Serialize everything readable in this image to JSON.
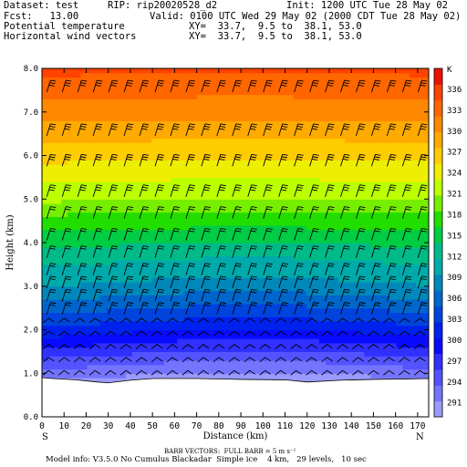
{
  "header": {
    "dataset": "Dataset: test",
    "rip": "RIP: rip20020528_d2",
    "init": "Init: 1200 UTC Tue 28 May 02",
    "fcst": "Fcst:   13.00",
    "valid": "Valid: 0100 UTC Wed 29 May 02 (2000 CDT Tue 28 May 02)",
    "field1_name": "Potential temperature",
    "field1_xy": "XY=  33.7,  9.5 to  38.1, 53.0",
    "field2_name": "Horizontal wind vectors",
    "field2_xy": "XY=  33.7,  9.5 to  38.1, 53.0"
  },
  "footer": {
    "barb_note": "BARB VECTORS:  FULL BARB = 5 m s⁻¹",
    "model_info": "Model info: V3.5.0 No Cumulus Blackadar  Simple ice    4 km,   29 levels,   10 sec"
  },
  "colors": {
    "palette": [
      "#9b9bff",
      "#7474ff",
      "#5353ff",
      "#3030ff",
      "#0a0aff",
      "#0022ee",
      "#0044dd",
      "#0066cc",
      "#0088bb",
      "#00aaaa",
      "#00bb88",
      "#00cc44",
      "#22dd00",
      "#77ee00",
      "#bbff00",
      "#eeee00",
      "#ffcc00",
      "#ffaa00",
      "#ff8800",
      "#ff6600",
      "#ff4400",
      "#ee1100"
    ],
    "underground": "#ffffff",
    "barb": "#000000"
  },
  "chart_data": {
    "type": "heatmap",
    "title": "Potential temperature",
    "xlabel": "Distance (km)",
    "ylabel": "Height (km)",
    "xlim": [
      0,
      175
    ],
    "ylim": [
      0,
      8
    ],
    "x_ticks": [
      0,
      10,
      20,
      30,
      40,
      50,
      60,
      70,
      80,
      90,
      100,
      110,
      120,
      130,
      140,
      150,
      160,
      170
    ],
    "y_ticks": [
      "0.0",
      "1.0",
      "2.0",
      "3.0",
      "4.0",
      "5.0",
      "6.0",
      "7.0",
      "8.0"
    ],
    "end_labels": {
      "left": "S",
      "right": "N"
    },
    "colorbar": {
      "unit": "K",
      "levels": [
        291,
        294,
        297,
        300,
        303,
        306,
        309,
        312,
        315,
        318,
        321,
        324,
        327,
        330,
        333,
        336
      ],
      "range": [
        289,
        339
      ]
    },
    "terrain_km": [
      [
        0,
        0.9
      ],
      [
        5,
        0.88
      ],
      [
        15,
        0.85
      ],
      [
        25,
        0.8
      ],
      [
        30,
        0.78
      ],
      [
        40,
        0.84
      ],
      [
        50,
        0.88
      ],
      [
        70,
        0.88
      ],
      [
        90,
        0.86
      ],
      [
        110,
        0.85
      ],
      [
        120,
        0.8
      ],
      [
        135,
        0.84
      ],
      [
        150,
        0.86
      ],
      [
        165,
        0.87
      ],
      [
        175,
        0.88
      ]
    ],
    "contour_heights_km": [
      {
        "level": 303,
        "height": 2.2
      },
      {
        "level": 306,
        "height": 2.6
      },
      {
        "level": 309,
        "height": 3.0
      },
      {
        "level": 312,
        "height": 3.6
      },
      {
        "level": 315,
        "height": 4.1
      },
      {
        "level": 318,
        "height": 4.6
      },
      {
        "level": 321,
        "height": 5.0
      },
      {
        "level": 324,
        "height": 5.6
      },
      {
        "level": 327,
        "height": 6.2
      },
      {
        "level": 330,
        "height": 6.8
      },
      {
        "level": 333,
        "height": 7.5
      }
    ],
    "barb_rows_km": [
      1.0,
      1.3,
      1.6,
      1.9,
      2.2,
      2.5,
      2.8,
      3.1,
      3.4,
      3.8,
      4.2,
      4.7,
      5.2,
      5.9,
      6.6,
      7.6
    ],
    "barb_cols_km": [
      0,
      7,
      14,
      21,
      28,
      35,
      42,
      49,
      56,
      63,
      70,
      77,
      84,
      91,
      98,
      105,
      112,
      119,
      126,
      133,
      140,
      147,
      154,
      161,
      168
    ]
  }
}
